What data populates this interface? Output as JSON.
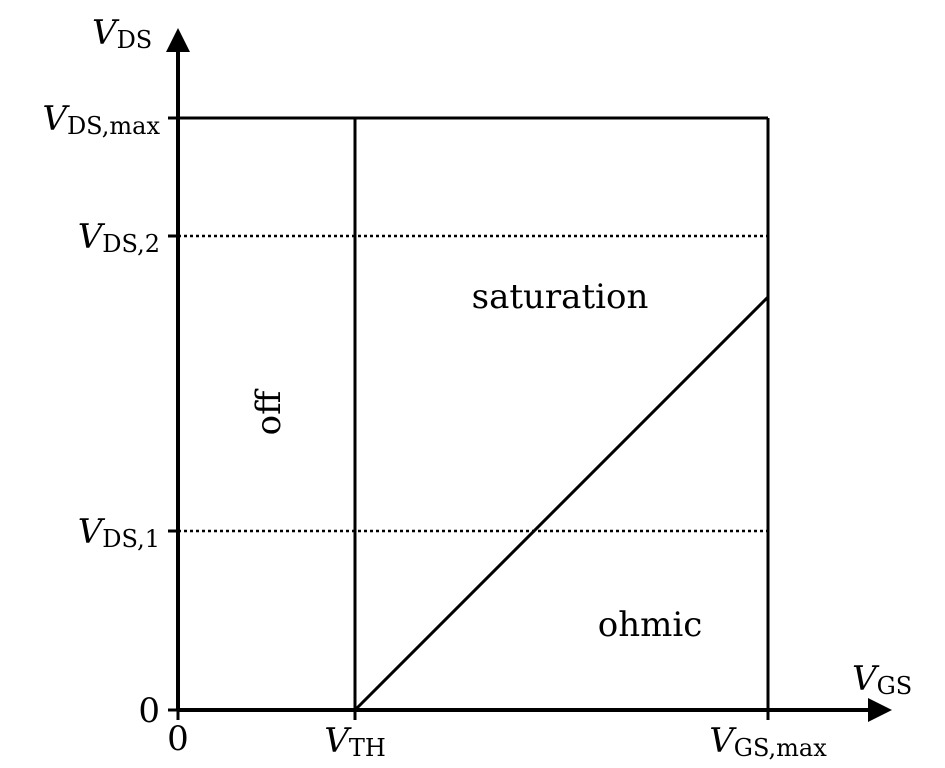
{
  "axes": {
    "y_label_main": "V",
    "y_label_sub": "DS",
    "x_label_main": "V",
    "x_label_sub": "GS"
  },
  "y_ticks": {
    "max_main": "V",
    "max_sub": "DS,max",
    "v2_main": "V",
    "v2_sub": "DS,2",
    "v1_main": "V",
    "v1_sub": "DS,1",
    "zero": "0"
  },
  "x_ticks": {
    "zero": "0",
    "th_main": "V",
    "th_sub": "TH",
    "max_main": "V",
    "max_sub": "GS,max"
  },
  "regions": {
    "off": "off",
    "saturation": "saturation",
    "ohmic": "ohmic"
  }
}
